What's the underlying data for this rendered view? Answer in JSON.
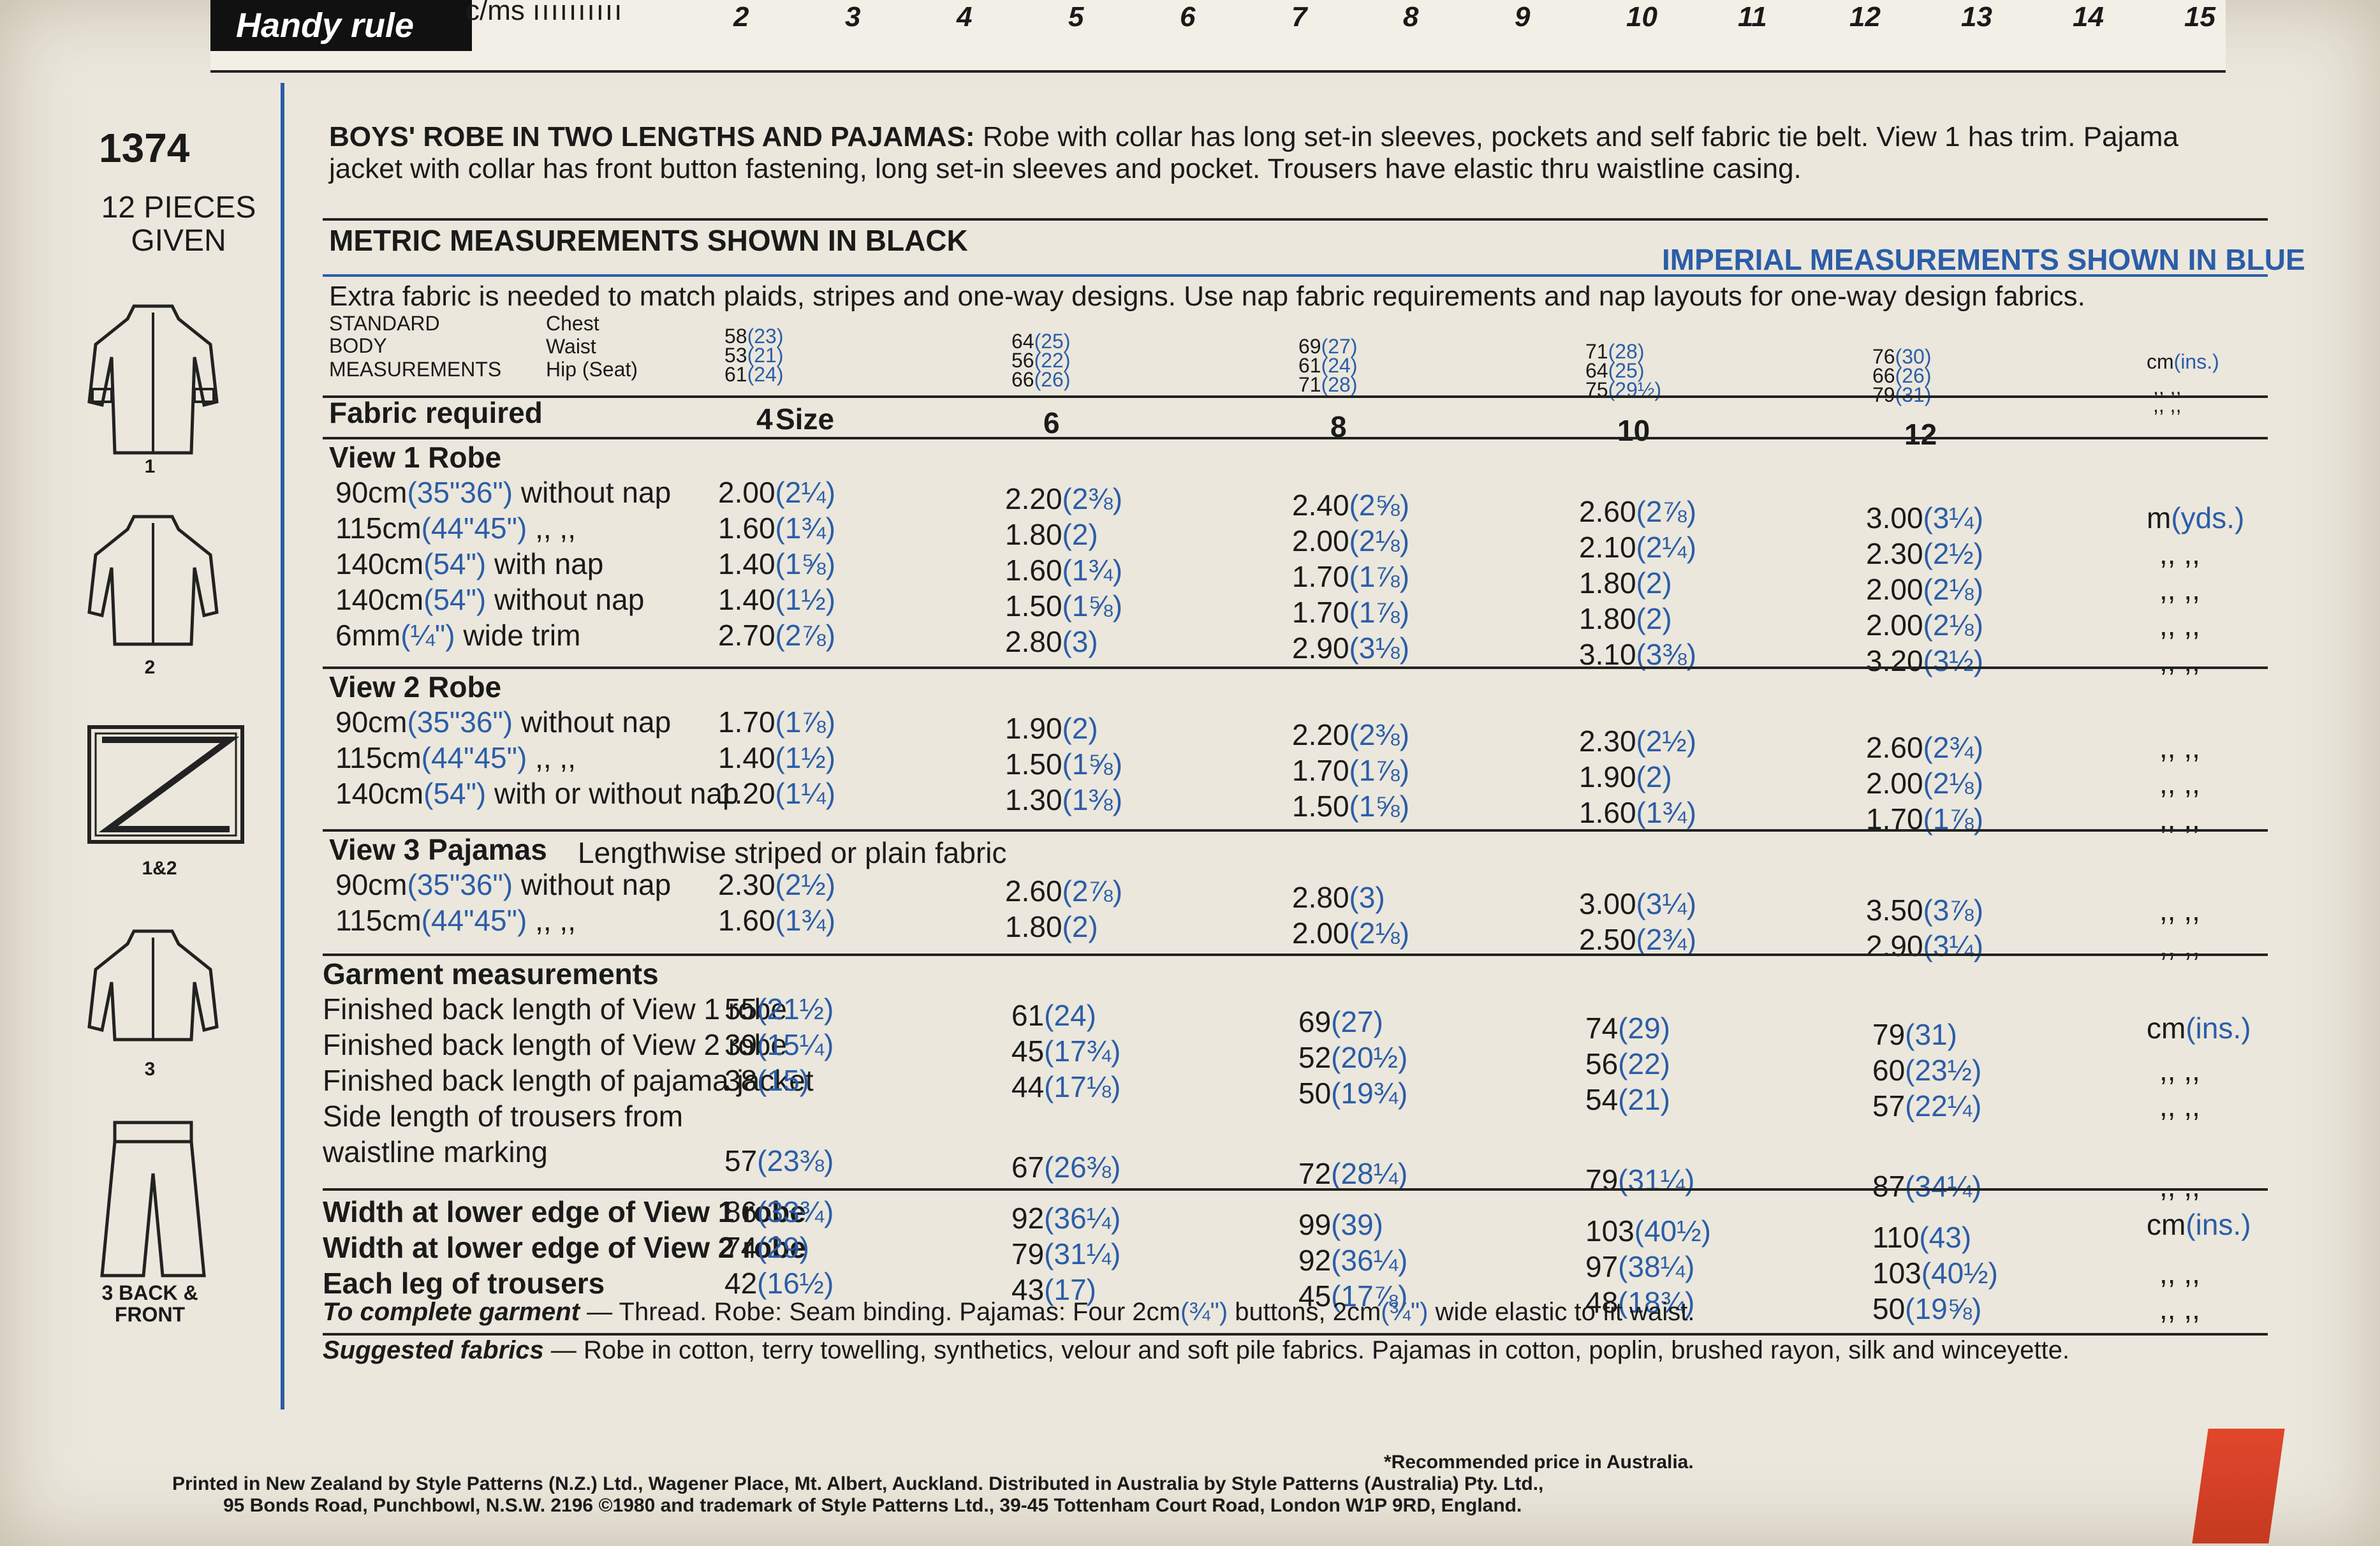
{
  "ruler": {
    "label": "Handy rule",
    "unit": "c/ms",
    "ticks": [
      "2",
      "3",
      "4",
      "5",
      "6",
      "7",
      "8",
      "9",
      "10",
      "11",
      "12",
      "13",
      "14",
      "15"
    ]
  },
  "left": {
    "pattern_number": "1374",
    "pieces": "12 PIECES GIVEN",
    "fig_labels": [
      "1",
      "2",
      "1&2",
      "3",
      "3 BACK & FRONT"
    ]
  },
  "header": {
    "title": "BOYS' ROBE IN TWO LENGTHS AND PAJAMAS:",
    "description": "Robe with collar has long set-in sleeves, pockets and self fabric tie belt. View 1 has trim. Pajama jacket with collar has front button fastening, long set-in sleeves and pocket. Trousers have elastic thru waistline casing.",
    "metric_note": "METRIC MEASUREMENTS SHOWN IN BLACK",
    "imperial_note": "IMPERIAL MEASUREMENTS SHOWN IN BLUE",
    "extra_fabric": "Extra fabric is needed to match plaids, stripes and one-way designs. Use nap fabric requirements and nap layouts for one-way design fabrics."
  },
  "body": {
    "label_standard": "STANDARD",
    "label_body": "BODY",
    "label_measurements": "MEASUREMENTS",
    "labels": [
      "Chest",
      "Waist",
      "Hip (Seat)"
    ],
    "unit": "cm",
    "unit_blue": "(ins.)",
    "ditto": ",, ,,",
    "sizes": [
      {
        "chest": "58",
        "chest_i": "(23)",
        "waist": "53",
        "waist_i": "(21)",
        "hip": "61",
        "hip_i": "(24)"
      },
      {
        "chest": "64",
        "chest_i": "(25)",
        "waist": "56",
        "waist_i": "(22)",
        "hip": "66",
        "hip_i": "(26)"
      },
      {
        "chest": "69",
        "chest_i": "(27)",
        "waist": "61",
        "waist_i": "(24)",
        "hip": "71",
        "hip_i": "(28)"
      },
      {
        "chest": "71",
        "chest_i": "(28)",
        "waist": "64",
        "waist_i": "(25)",
        "hip": "75",
        "hip_i": "(29½)"
      },
      {
        "chest": "76",
        "chest_i": "(30)",
        "waist": "66",
        "waist_i": "(26)",
        "hip": "79",
        "hip_i": "(31)"
      }
    ]
  },
  "fabric": {
    "label": "Fabric required",
    "size_label": "Size",
    "sizes": [
      "4",
      "6",
      "8",
      "10",
      "12"
    ],
    "unit_m": "m",
    "unit_yds": "(yds.)",
    "ditto": ",, ,,",
    "view1": {
      "title": "View 1   Robe",
      "rows": [
        {
          "m": "90cm",
          "i": "(35\"36\")",
          "rest": " without nap",
          "vals": [
            [
              "2.00",
              "(2¼)"
            ],
            [
              "2.20",
              "(2⅜)"
            ],
            [
              "2.40",
              "(2⅝)"
            ],
            [
              "2.60",
              "(2⅞)"
            ],
            [
              "3.00",
              "(3¼)"
            ]
          ]
        },
        {
          "m": "115cm",
          "i": "(44\"45\")",
          "rest": "     ,,      ,,",
          "vals": [
            [
              "1.60",
              "(1¾)"
            ],
            [
              "1.80",
              "(2)"
            ],
            [
              "2.00",
              "(2⅛)"
            ],
            [
              "2.10",
              "(2¼)"
            ],
            [
              "2.30",
              "(2½)"
            ]
          ]
        },
        {
          "m": "140cm",
          "i": "(54\")",
          "rest": " with nap",
          "vals": [
            [
              "1.40",
              "(1⅝)"
            ],
            [
              "1.60",
              "(1¾)"
            ],
            [
              "1.70",
              "(1⅞)"
            ],
            [
              "1.80",
              "(2)"
            ],
            [
              "2.00",
              "(2⅛)"
            ]
          ]
        },
        {
          "m": "140cm",
          "i": "(54\")",
          "rest": " without nap",
          "vals": [
            [
              "1.40",
              "(1½)"
            ],
            [
              "1.50",
              "(1⅝)"
            ],
            [
              "1.70",
              "(1⅞)"
            ],
            [
              "1.80",
              "(2)"
            ],
            [
              "2.00",
              "(2⅛)"
            ]
          ]
        },
        {
          "m": "6mm",
          "i": "(¼\")",
          "rest": " wide trim",
          "vals": [
            [
              "2.70",
              "(2⅞)"
            ],
            [
              "2.80",
              "(3)"
            ],
            [
              "2.90",
              "(3⅛)"
            ],
            [
              "3.10",
              "(3⅜)"
            ],
            [
              "3.20",
              "(3½)"
            ]
          ]
        }
      ]
    },
    "view2": {
      "title": "View 2   Robe",
      "rows": [
        {
          "m": "90cm",
          "i": "(35\"36\")",
          "rest": " without nap",
          "vals": [
            [
              "1.70",
              "(1⅞)"
            ],
            [
              "1.90",
              "(2)"
            ],
            [
              "2.20",
              "(2⅜)"
            ],
            [
              "2.30",
              "(2½)"
            ],
            [
              "2.60",
              "(2¾)"
            ]
          ]
        },
        {
          "m": "115cm",
          "i": "(44\"45\")",
          "rest": "     ,,      ,,",
          "vals": [
            [
              "1.40",
              "(1½)"
            ],
            [
              "1.50",
              "(1⅝)"
            ],
            [
              "1.70",
              "(1⅞)"
            ],
            [
              "1.90",
              "(2)"
            ],
            [
              "2.00",
              "(2⅛)"
            ]
          ]
        },
        {
          "m": "140cm",
          "i": "(54\")",
          "rest": " with or without nap",
          "vals": [
            [
              "1.20",
              "(1¼)"
            ],
            [
              "1.30",
              "(1⅜)"
            ],
            [
              "1.50",
              "(1⅝)"
            ],
            [
              "1.60",
              "(1¾)"
            ],
            [
              "1.70",
              "(1⅞)"
            ]
          ]
        }
      ]
    },
    "view3": {
      "title": "View 3   Pajamas",
      "subtitle": "Lengthwise striped or plain fabric",
      "rows": [
        {
          "m": "90cm",
          "i": "(35\"36\")",
          "rest": " without nap",
          "vals": [
            [
              "2.30",
              "(2½)"
            ],
            [
              "2.60",
              "(2⅞)"
            ],
            [
              "2.80",
              "(3)"
            ],
            [
              "3.00",
              "(3¼)"
            ],
            [
              "3.50",
              "(3⅞)"
            ]
          ]
        },
        {
          "m": "115cm",
          "i": "(44\"45\")",
          "rest": "     ,,      ,,",
          "vals": [
            [
              "1.60",
              "(1¾)"
            ],
            [
              "1.80",
              "(2)"
            ],
            [
              "2.00",
              "(2⅛)"
            ],
            [
              "2.50",
              "(2¾)"
            ],
            [
              "2.90",
              "(3¼)"
            ]
          ]
        }
      ]
    }
  },
  "garment": {
    "title": "Garment measurements",
    "unit": "cm",
    "unit_blue": "(ins.)",
    "ditto": ",, ,,",
    "rows": [
      {
        "label": "Finished back length of View 1 robe",
        "vals": [
          [
            "55",
            "(21½)"
          ],
          [
            "61",
            "(24)"
          ],
          [
            "69",
            "(27)"
          ],
          [
            "74",
            "(29)"
          ],
          [
            "79",
            "(31)"
          ]
        ]
      },
      {
        "label": "Finished back length of View 2 robe",
        "vals": [
          [
            "39",
            "(15¼)"
          ],
          [
            "45",
            "(17¾)"
          ],
          [
            "52",
            "(20½)"
          ],
          [
            "56",
            "(22)"
          ],
          [
            "60",
            "(23½)"
          ]
        ]
      },
      {
        "label": "Finished back length of pajama jacket",
        "vals": [
          [
            "38",
            "(15)"
          ],
          [
            "44",
            "(17⅛)"
          ],
          [
            "50",
            "(19¾)"
          ],
          [
            "54",
            "(21)"
          ],
          [
            "57",
            "(22¼)"
          ]
        ]
      },
      {
        "label": "Side length of trousers from",
        "label2": "waistline marking",
        "vals": [
          [
            "57",
            "(23⅜)"
          ],
          [
            "67",
            "(26⅜)"
          ],
          [
            "72",
            "(28¼)"
          ],
          [
            "79",
            "(31¼)"
          ],
          [
            "87",
            "(34¼)"
          ]
        ]
      }
    ],
    "widths": [
      {
        "label": "Width at lower edge of View 1 robe",
        "vals": [
          [
            "86",
            "(33¾)"
          ],
          [
            "92",
            "(36¼)"
          ],
          [
            "99",
            "(39)"
          ],
          [
            "103",
            "(40½)"
          ],
          [
            "110",
            "(43)"
          ]
        ]
      },
      {
        "label": "Width at lower edge of View 2 robe",
        "vals": [
          [
            "74",
            "(29)"
          ],
          [
            "79",
            "(31¼)"
          ],
          [
            "92",
            "(36¼)"
          ],
          [
            "97",
            "(38¼)"
          ],
          [
            "103",
            "(40½)"
          ]
        ]
      },
      {
        "label": "Each leg of trousers",
        "vals": [
          [
            "42",
            "(16½)"
          ],
          [
            "43",
            "(17)"
          ],
          [
            "45",
            "(17⅞)"
          ],
          [
            "48",
            "(18¾)"
          ],
          [
            "50",
            "(19⅝)"
          ]
        ]
      }
    ]
  },
  "notes": {
    "complete_label": "To complete garment",
    "complete_text_1": " — Thread. Robe: Seam binding. Pajamas: Four 2cm",
    "complete_i1": "(¾\")",
    "complete_text_2": " buttons, 2cm",
    "complete_i2": "(¾\")",
    "complete_text_3": " wide elastic to fit waist.",
    "suggested_label": "Suggested fabrics",
    "suggested_text": " — Robe in cotton, terry towelling, synthetics, velour and soft pile fabrics. Pajamas in cotton, poplin, brushed rayon, silk and winceyette."
  },
  "footer": {
    "line1": "Printed in New Zealand by Style Patterns (N.Z.) Ltd., Wagener Place, Mt. Albert, Auckland. Distributed in Australia by Style Patterns (Australia) Pty. Ltd.,",
    "line2": "95 Bonds Road, Punchbowl, N.S.W. 2196     ©1980 and trademark of Style Patterns Ltd., 39-45 Tottenham Court Road, London W1P 9RD, England.",
    "price": "*Recommended price in Australia."
  },
  "colors": {
    "imperial": "#2b5da8",
    "metric": "#1a1a1a",
    "paper": "#ebe7dc"
  }
}
